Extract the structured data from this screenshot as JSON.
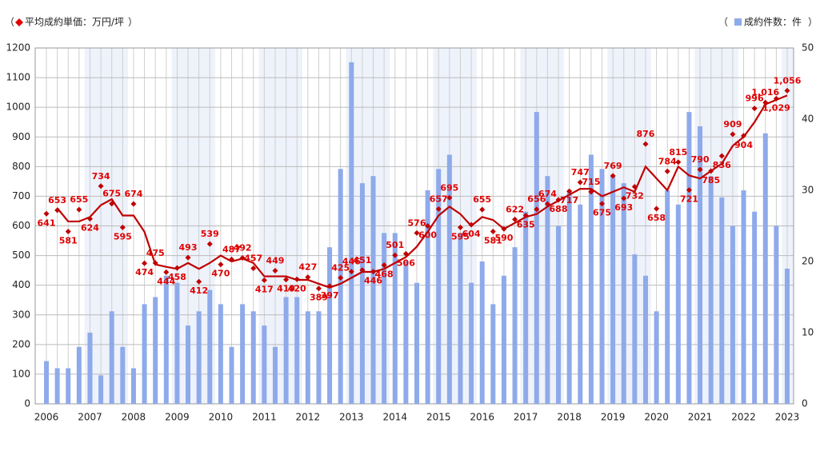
{
  "chart_data": {
    "type": "combo",
    "legend_brackets": [
      "（",
      "）"
    ],
    "categories": [
      "2006",
      null,
      null,
      null,
      "2007",
      null,
      null,
      null,
      "2008",
      null,
      null,
      null,
      "2009",
      null,
      null,
      null,
      "2010",
      null,
      null,
      null,
      "2011",
      null,
      null,
      null,
      "2012",
      null,
      null,
      null,
      "2013",
      null,
      null,
      null,
      "2014",
      null,
      null,
      null,
      "2015",
      null,
      null,
      null,
      "2016",
      null,
      null,
      null,
      "2017",
      null,
      null,
      null,
      "2018",
      null,
      null,
      null,
      "2019",
      null,
      null,
      null,
      "2020",
      null,
      null,
      null,
      "2021",
      null,
      null,
      null,
      "2022",
      null,
      null,
      null,
      "2023"
    ],
    "series": [
      {
        "name": "成約件数：件",
        "type": "bar",
        "axis": "y2",
        "color": "#8eaaea",
        "values": [
          6,
          5,
          5,
          8,
          10,
          4,
          13,
          8,
          5,
          14,
          15,
          18,
          17,
          11,
          13,
          16,
          14,
          8,
          14,
          13,
          11,
          8,
          15,
          15,
          13,
          13,
          22,
          33,
          48,
          31,
          32,
          24,
          24,
          20,
          17,
          30,
          33,
          35,
          24,
          17,
          20,
          14,
          18,
          22,
          27,
          41,
          32,
          25,
          30,
          28,
          35,
          33,
          32,
          31,
          21,
          18,
          13,
          30,
          28,
          41,
          39,
          32,
          29,
          25,
          30,
          27,
          38,
          25,
          19
        ]
      },
      {
        "name": "平均成約単価：万円/坪",
        "type": "scatter",
        "color": "#c00000",
        "values": [
          641,
          653,
          581,
          655,
          624,
          734,
          675,
          595,
          674,
          474,
          475,
          444,
          458,
          493,
          412,
          539,
          470,
          487,
          492,
          457,
          417,
          449,
          419,
          420,
          427,
          389,
          397,
          425,
          446,
          451,
          446,
          468,
          501,
          506,
          576,
          600,
          657,
          695,
          595,
          604,
          655,
          581,
          590,
          622,
          635,
          656,
          674,
          688,
          717,
          747,
          715,
          675,
          769,
          693,
          732,
          876,
          658,
          784,
          815,
          721,
          790,
          785,
          836,
          909,
          904,
          996,
          1016,
          1029,
          1056
        ],
        "value_labels": [
          "641",
          "653",
          "581",
          "655",
          "624",
          "734",
          "675",
          "595",
          "674",
          "474",
          "475",
          "444",
          "458",
          "493",
          "412",
          "539",
          "470",
          "487",
          "492",
          "457",
          "417",
          "449",
          "419",
          "420",
          "427",
          "389",
          "397",
          "425",
          "446",
          "451",
          "446",
          "468",
          "501",
          "506",
          "576",
          "600",
          "657",
          "695",
          "595",
          "604",
          "655",
          "581",
          "590",
          "622",
          "635",
          "656",
          "674",
          "688",
          "717",
          "747",
          "715",
          "675",
          "769",
          "693",
          "732",
          "876",
          "658",
          "784",
          "815",
          "721",
          "790",
          "785",
          "836",
          "909",
          "904",
          "996",
          "1,016",
          "1,029",
          "1,056"
        ]
      },
      {
        "type": "line",
        "color": "#c00000",
        "values": [
          null,
          660,
          615,
          615,
          630,
          670,
          690,
          635,
          635,
          580,
          470,
          462,
          455,
          475,
          455,
          475,
          500,
          480,
          490,
          475,
          430,
          430,
          430,
          418,
          418,
          405,
          392,
          405,
          425,
          445,
          445,
          455,
          475,
          495,
          530,
          580,
          635,
          665,
          640,
          600,
          630,
          620,
          590,
          610,
          630,
          640,
          665,
          685,
          705,
          725,
          725,
          700,
          715,
          730,
          715,
          800,
          760,
          720,
          800,
          770,
          760,
          785,
          810,
          870,
          900,
          950,
          1010,
          1025,
          1040
        ]
      }
    ],
    "ylim": [
      0,
      1200
    ],
    "yticks": [
      0,
      100,
      200,
      300,
      400,
      500,
      600,
      700,
      800,
      900,
      1000,
      1100,
      1200
    ],
    "y2lim": [
      0,
      50
    ],
    "y2ticks": [
      0,
      10,
      20,
      30,
      40,
      50
    ],
    "grid": true
  }
}
